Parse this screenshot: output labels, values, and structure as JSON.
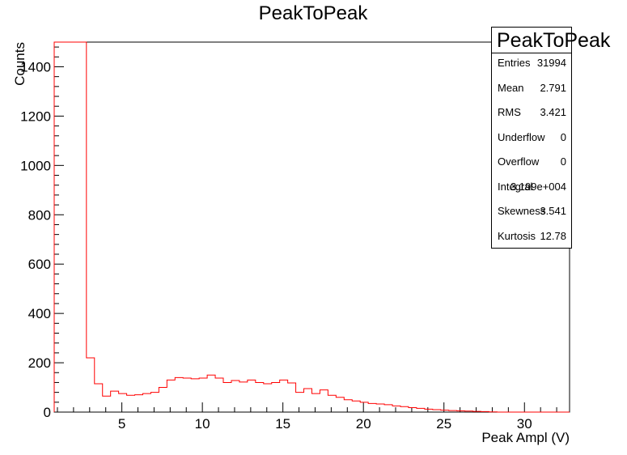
{
  "chart_data": {
    "type": "histogram",
    "title": "PeakToPeak",
    "xlabel": "Peak Ampl (V)",
    "ylabel": "Counts",
    "xlim": [
      0.8,
      32.8
    ],
    "ylim": [
      0,
      1500
    ],
    "bin_width": 0.5,
    "x_major_ticks": [
      5,
      10,
      15,
      20,
      25,
      30
    ],
    "y_major_ticks": [
      0,
      200,
      400,
      600,
      800,
      1000,
      1200,
      1400
    ],
    "line_color": "#ff0000",
    "bin_edges_start": 0.8,
    "counts": [
      1500,
      1500,
      1500,
      1500,
      220,
      115,
      65,
      85,
      75,
      68,
      70,
      75,
      80,
      100,
      130,
      140,
      138,
      135,
      138,
      150,
      138,
      120,
      128,
      122,
      130,
      120,
      115,
      120,
      130,
      118,
      80,
      95,
      75,
      90,
      68,
      60,
      50,
      45,
      40,
      35,
      33,
      30,
      25,
      22,
      18,
      15,
      12,
      10,
      8,
      6,
      5,
      4,
      3,
      2,
      1,
      0,
      0,
      0,
      0,
      0,
      0,
      0,
      0,
      0
    ]
  },
  "stats": {
    "title": "PeakToPeak",
    "rows": [
      {
        "name": "Entries",
        "value": "31994"
      },
      {
        "name": "Mean",
        "value": "2.791"
      },
      {
        "name": "RMS",
        "value": "3.421"
      },
      {
        "name": "Underflow",
        "value": "0"
      },
      {
        "name": "Overflow",
        "value": "0"
      },
      {
        "name": "Integral",
        "value": "3.199e+004"
      },
      {
        "name": "Skewness",
        "value": "3.541"
      },
      {
        "name": "Kurtosis",
        "value": "12.78"
      }
    ]
  }
}
